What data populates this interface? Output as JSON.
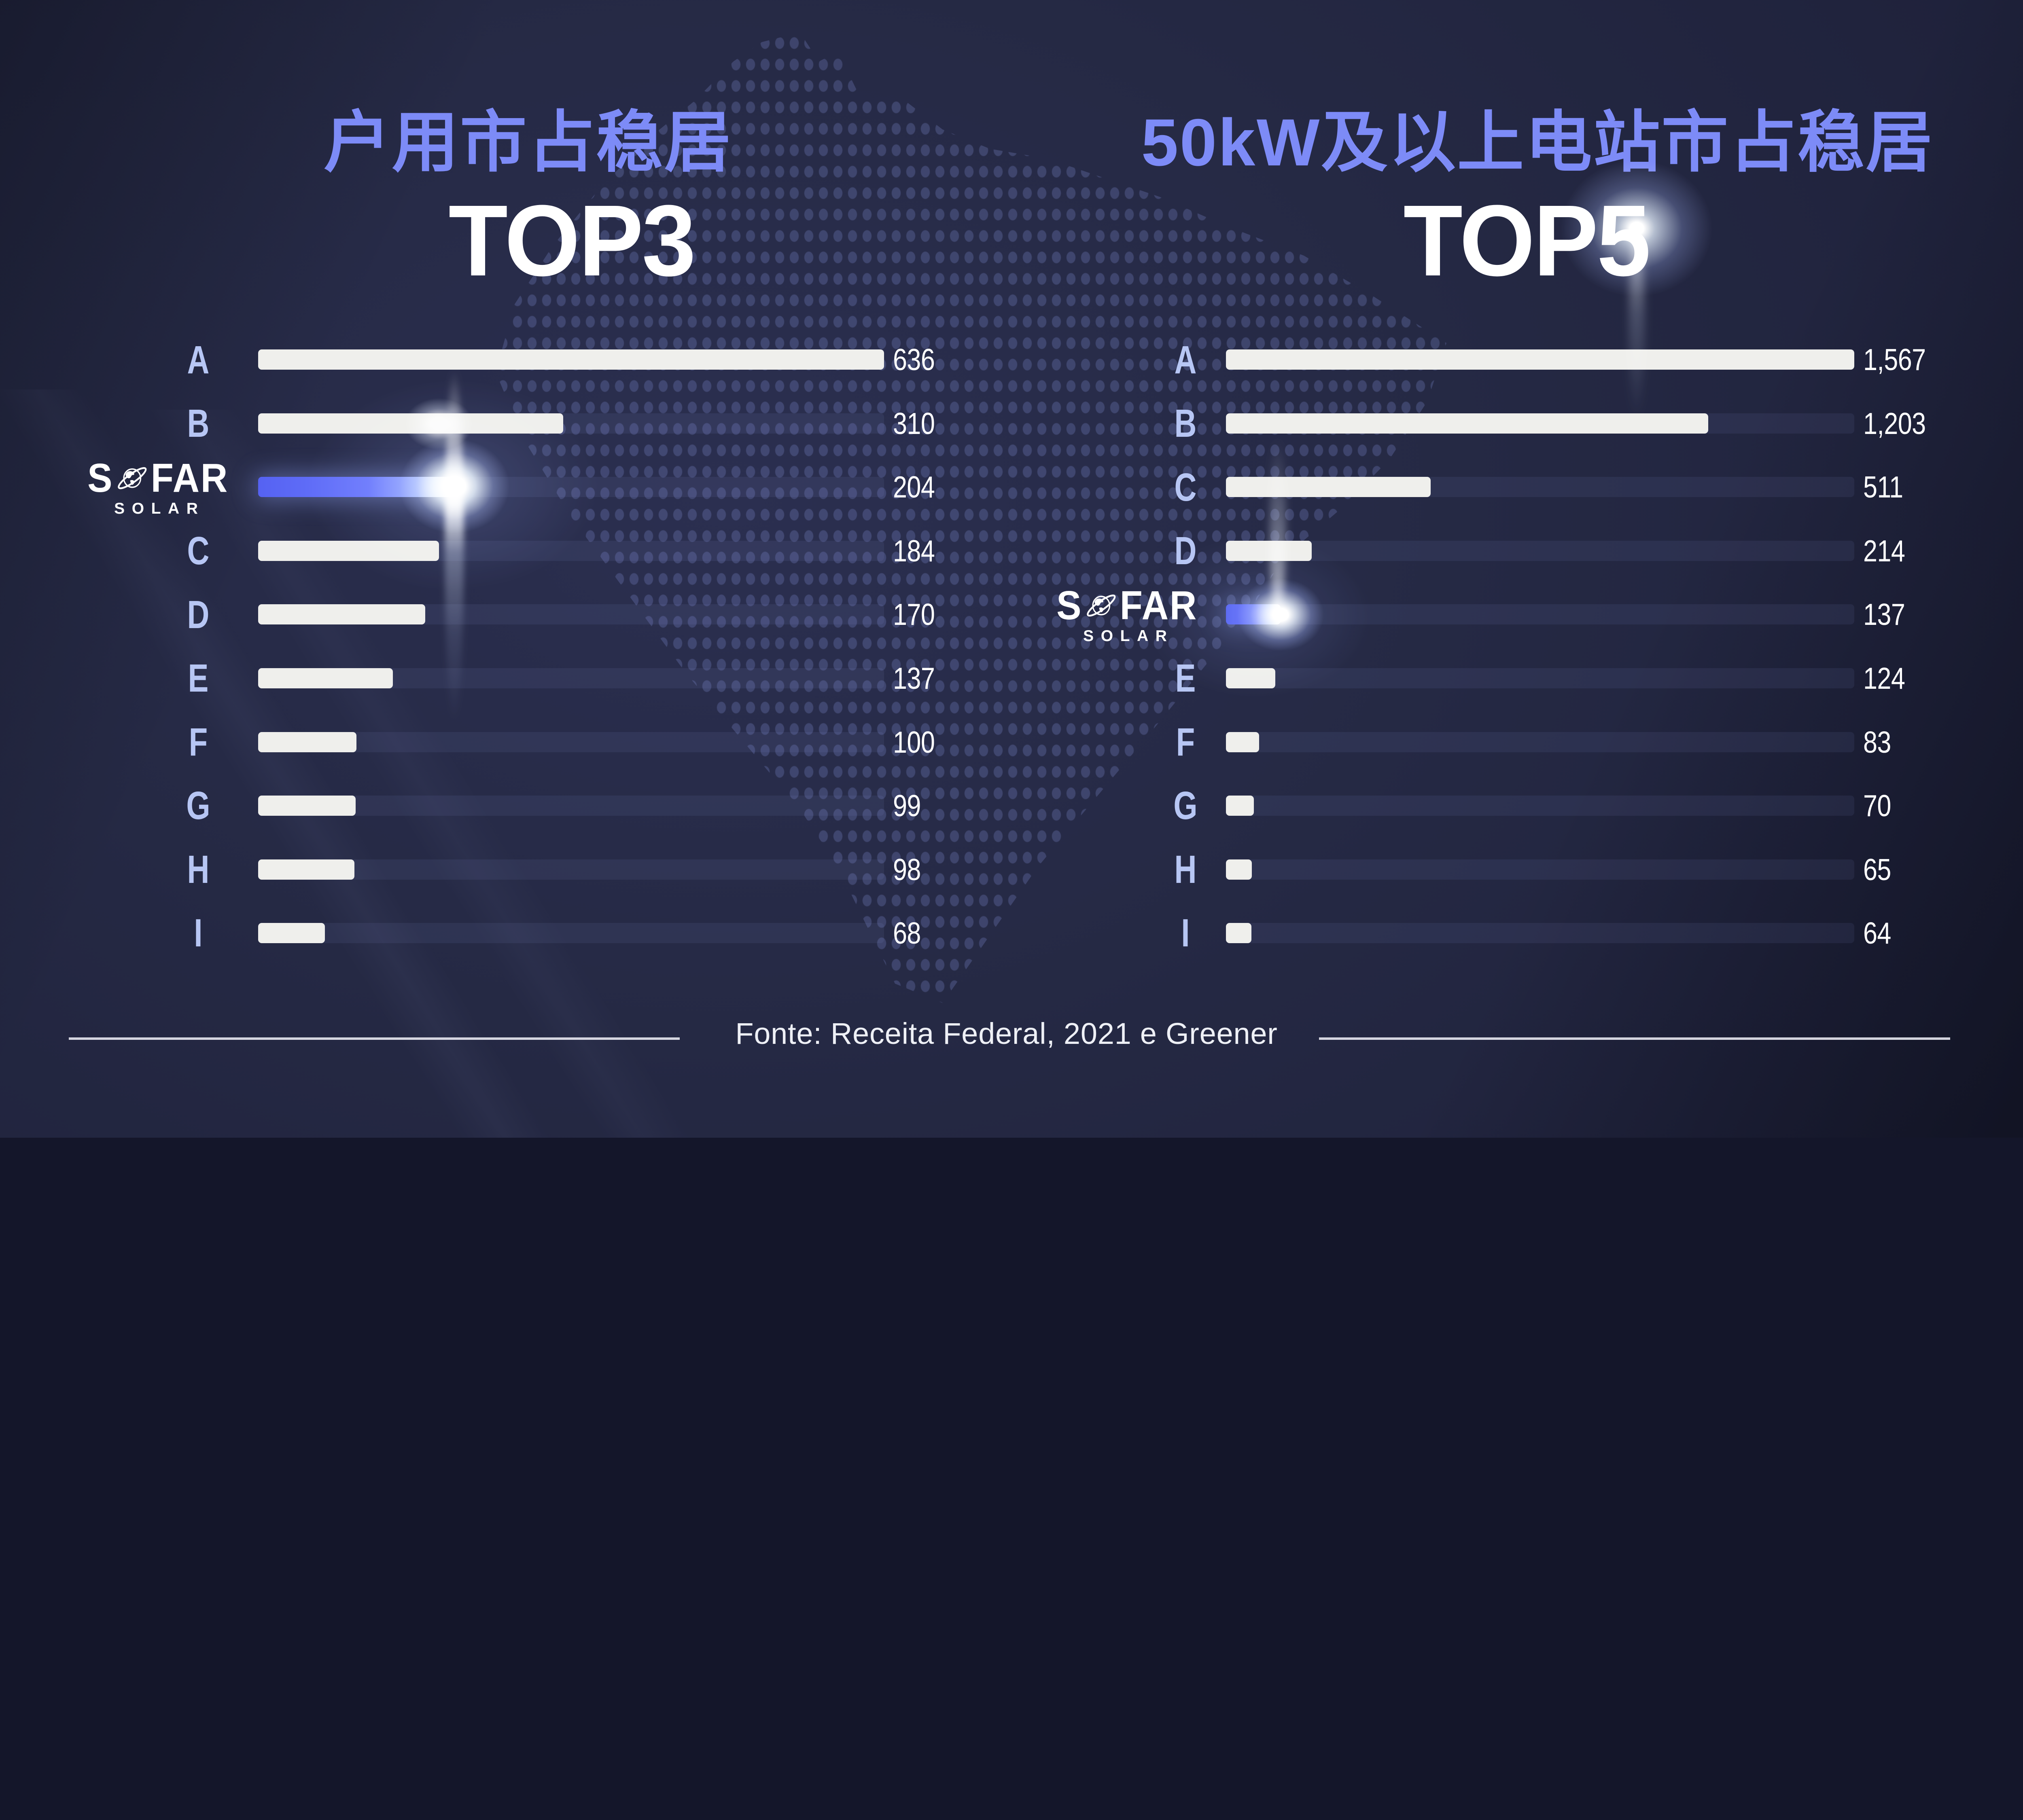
{
  "header": {
    "left": {
      "title": "户用市占稳居",
      "rank_label": "TOP3"
    },
    "right": {
      "title": "50kW及以上电站市占稳居",
      "rank_label": "TOP5"
    }
  },
  "logo": {
    "prefix": "S",
    "suffix": "FAR",
    "subtitle": "SOLAR"
  },
  "footer": {
    "source_text": "Fonte: Receita Federal, 2021 e Greener"
  },
  "colors": {
    "background": "#232744",
    "accent_title": "#7d8bf7",
    "row_label": "#b7c6f4",
    "bar_fill": "#efefec",
    "bar_highlight": "#5f6efc",
    "track": "rgba(150,162,230,0.085)",
    "value_text": "#ffffff"
  },
  "chart_data": [
    {
      "type": "bar",
      "orientation": "horizontal",
      "title": "户用市占稳居 TOP3",
      "categories": [
        "A",
        "B",
        "SOFAR",
        "C",
        "D",
        "E",
        "F",
        "G",
        "H",
        "I"
      ],
      "values": [
        636,
        310,
        204,
        184,
        170,
        137,
        100,
        99,
        98,
        68
      ],
      "value_labels": [
        "636",
        "310",
        "204",
        "184",
        "170",
        "137",
        "100",
        "99",
        "98",
        "68"
      ],
      "max": 636,
      "highlight_category": "SOFAR",
      "legend": "none",
      "grid": false
    },
    {
      "type": "bar",
      "orientation": "horizontal",
      "title": "50kW及以上电站市占稳居 TOP5",
      "categories": [
        "A",
        "B",
        "C",
        "D",
        "SOFAR",
        "E",
        "F",
        "G",
        "H",
        "I"
      ],
      "values": [
        1567,
        1203,
        511,
        214,
        137,
        124,
        83,
        70,
        65,
        64
      ],
      "value_labels": [
        "1,567",
        "1,203",
        "511",
        "214",
        "137",
        "124",
        "83",
        "70",
        "65",
        "64"
      ],
      "max": 1567,
      "highlight_category": "SOFAR",
      "legend": "none",
      "grid": false
    }
  ]
}
